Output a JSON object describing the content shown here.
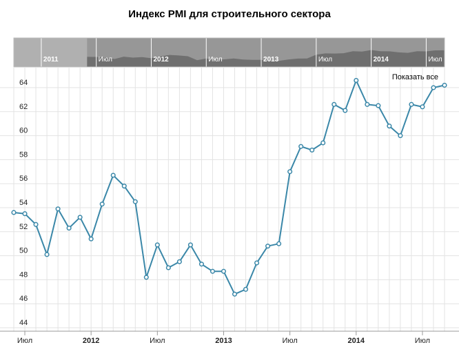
{
  "chart_data": {
    "type": "line",
    "title": "Индекс PMI для строительного сектора",
    "xlabel": "",
    "ylabel": "",
    "ylim": [
      44,
      65
    ],
    "y_ticks": [
      44,
      46,
      48,
      50,
      52,
      54,
      56,
      58,
      60,
      62,
      64
    ],
    "grid": true,
    "legend": "none",
    "colors": {
      "line": "#3a87a8",
      "marker_fill": "#ffffff",
      "grid": "#e3e3e3"
    },
    "x": [
      "2011-06",
      "2011-07",
      "2011-08",
      "2011-09",
      "2011-10",
      "2011-11",
      "2011-12",
      "2012-01",
      "2012-02",
      "2012-03",
      "2012-04",
      "2012-05",
      "2012-06",
      "2012-07",
      "2012-08",
      "2012-09",
      "2012-10",
      "2012-11",
      "2012-12",
      "2013-01",
      "2013-02",
      "2013-03",
      "2013-04",
      "2013-05",
      "2013-06",
      "2013-07",
      "2013-08",
      "2013-09",
      "2013-10",
      "2013-11",
      "2013-12",
      "2014-01",
      "2014-02",
      "2014-03",
      "2014-04",
      "2014-05",
      "2014-06",
      "2014-07",
      "2014-08",
      "2014-09"
    ],
    "series": [
      {
        "values": [
          53.6,
          53.5,
          52.6,
          50.1,
          53.9,
          52.3,
          53.2,
          51.4,
          54.3,
          56.7,
          55.8,
          54.5,
          48.2,
          50.9,
          49.0,
          49.5,
          50.9,
          49.3,
          48.7,
          48.7,
          46.8,
          47.2,
          49.4,
          50.8,
          51.0,
          57.0,
          59.1,
          58.8,
          59.4,
          62.6,
          62.1,
          64.6,
          62.6,
          62.5,
          60.8,
          60.0,
          62.6,
          62.4,
          64.0,
          64.2
        ]
      }
    ],
    "x_tick_labels": [
      {
        "label": "Июл",
        "at": "2011-07",
        "bold": false
      },
      {
        "label": "2012",
        "at": "2012-01",
        "bold": true
      },
      {
        "label": "Июл",
        "at": "2012-07",
        "bold": false
      },
      {
        "label": "2013",
        "at": "2013-01",
        "bold": true
      },
      {
        "label": "Июл",
        "at": "2013-07",
        "bold": false
      },
      {
        "label": "2014",
        "at": "2014-01",
        "bold": true
      },
      {
        "label": "Июл",
        "at": "2014-07",
        "bold": false
      }
    ]
  },
  "navigator": {
    "labels": [
      {
        "label": "2011",
        "at": "2011-01",
        "bold": true
      },
      {
        "label": "Июл",
        "at": "2011-07",
        "bold": false
      },
      {
        "label": "2012",
        "at": "2012-01",
        "bold": true
      },
      {
        "label": "Июл",
        "at": "2012-07",
        "bold": false
      },
      {
        "label": "2013",
        "at": "2013-01",
        "bold": true
      },
      {
        "label": "Июл",
        "at": "2013-07",
        "bold": false
      },
      {
        "label": "2014",
        "at": "2014-01",
        "bold": true
      },
      {
        "label": "Июл",
        "at": "2014-07",
        "bold": false
      }
    ],
    "colors": {
      "background": "#b0b0b0",
      "selected": "#8a8a8a",
      "area": "#6f6f6f",
      "divider": "#ffffff"
    }
  },
  "controls": {
    "show_all_label": "Показать все"
  }
}
